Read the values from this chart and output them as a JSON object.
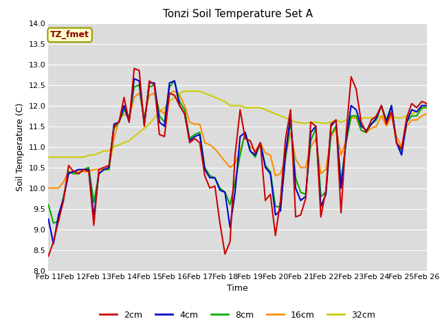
{
  "title": "Tonzi Soil Temperature Set A",
  "xlabel": "Time",
  "ylabel": "Soil Temperature (C)",
  "ylim": [
    8.0,
    14.0
  ],
  "yticks": [
    8.0,
    8.5,
    9.0,
    9.5,
    10.0,
    10.5,
    11.0,
    11.5,
    12.0,
    12.5,
    13.0,
    13.5,
    14.0
  ],
  "xtick_labels": [
    "Feb 11",
    "Feb 12",
    "Feb 13",
    "Feb 14",
    "Feb 15",
    "Feb 16",
    "Feb 17",
    "Feb 18",
    "Feb 19",
    "Feb 20",
    "Feb 21",
    "Feb 22",
    "Feb 23",
    "Feb 24",
    "Feb 25",
    "Feb 26"
  ],
  "annotation_text": "TZ_fmet",
  "annotation_color": "#8B0000",
  "annotation_bg": "#FFFFCC",
  "annotation_border": "#999900",
  "series": {
    "2cm": {
      "color": "#CC0000",
      "lw": 1.5,
      "y": [
        8.35,
        8.7,
        9.2,
        9.7,
        10.55,
        10.4,
        10.35,
        10.45,
        10.4,
        9.1,
        10.45,
        10.5,
        10.55,
        11.5,
        11.6,
        12.2,
        11.6,
        12.9,
        12.85,
        11.5,
        12.6,
        12.5,
        11.3,
        11.25,
        12.3,
        12.25,
        12.0,
        11.8,
        11.1,
        11.2,
        11.1,
        10.3,
        10.0,
        10.05,
        9.15,
        8.4,
        8.7,
        10.8,
        11.9,
        11.2,
        11.15,
        10.85,
        11.1,
        9.7,
        9.85,
        8.85,
        9.7,
        11.2,
        11.9,
        9.3,
        9.35,
        9.75,
        11.6,
        11.5,
        9.3,
        9.95,
        11.55,
        11.65,
        9.4,
        11.3,
        12.7,
        12.4,
        11.6,
        11.35,
        11.65,
        11.75,
        12.0,
        11.55,
        11.85,
        11.1,
        10.95,
        11.7,
        12.05,
        11.95,
        12.1,
        12.05
      ]
    },
    "4cm": {
      "color": "#0000CC",
      "lw": 1.5,
      "y": [
        9.25,
        8.65,
        9.35,
        9.75,
        10.35,
        10.4,
        10.45,
        10.45,
        10.45,
        9.3,
        10.35,
        10.45,
        10.5,
        11.55,
        11.6,
        12.0,
        11.6,
        12.65,
        12.6,
        11.55,
        12.55,
        12.55,
        11.6,
        11.5,
        12.55,
        12.6,
        12.0,
        11.8,
        11.15,
        11.25,
        11.3,
        10.45,
        10.25,
        10.25,
        9.95,
        9.9,
        9.05,
        9.9,
        11.25,
        11.35,
        10.9,
        10.8,
        11.1,
        10.5,
        10.35,
        9.35,
        9.45,
        10.85,
        11.75,
        10.0,
        9.7,
        9.8,
        11.35,
        11.5,
        9.55,
        9.85,
        11.5,
        11.65,
        10.0,
        11.15,
        12.0,
        11.9,
        11.5,
        11.4,
        11.55,
        11.7,
        12.0,
        11.6,
        12.0,
        11.1,
        10.8,
        11.6,
        11.9,
        11.85,
        12.0,
        12.0
      ]
    },
    "8cm": {
      "color": "#00AA00",
      "lw": 1.5,
      "y": [
        9.6,
        9.15,
        9.2,
        9.8,
        10.4,
        10.35,
        10.35,
        10.45,
        10.5,
        9.65,
        10.35,
        10.45,
        10.45,
        11.45,
        11.6,
        11.9,
        11.7,
        12.45,
        12.5,
        11.6,
        12.45,
        12.5,
        11.75,
        11.6,
        12.45,
        12.6,
        12.1,
        11.9,
        11.2,
        11.3,
        11.35,
        10.5,
        10.3,
        10.25,
        10.0,
        9.9,
        9.6,
        10.15,
        10.8,
        11.35,
        10.9,
        10.75,
        11.1,
        10.55,
        10.4,
        9.55,
        9.55,
        10.75,
        11.6,
        10.25,
        9.9,
        9.85,
        11.15,
        11.45,
        9.8,
        9.9,
        11.3,
        11.5,
        10.15,
        11.1,
        11.75,
        11.75,
        11.4,
        11.35,
        11.55,
        11.65,
        12.0,
        11.65,
        12.0,
        11.1,
        10.9,
        11.6,
        11.75,
        11.75,
        11.95,
        11.95
      ]
    },
    "16cm": {
      "color": "#FF8C00",
      "lw": 1.5,
      "y": [
        10.0,
        10.0,
        10.0,
        10.15,
        10.4,
        10.4,
        10.4,
        10.4,
        10.4,
        10.45,
        10.45,
        10.45,
        10.45,
        11.2,
        11.65,
        11.8,
        11.7,
        12.2,
        12.3,
        11.75,
        12.25,
        12.3,
        11.9,
        11.8,
        12.3,
        12.35,
        12.25,
        12.0,
        11.6,
        11.55,
        11.55,
        11.1,
        11.05,
        10.95,
        10.8,
        10.65,
        10.5,
        10.6,
        10.9,
        11.3,
        11.0,
        10.9,
        11.1,
        10.85,
        10.8,
        10.3,
        10.35,
        10.75,
        11.35,
        10.7,
        10.5,
        10.5,
        11.0,
        11.2,
        10.35,
        10.45,
        11.25,
        11.45,
        10.8,
        11.15,
        11.7,
        11.7,
        11.4,
        11.35,
        11.45,
        11.5,
        11.75,
        11.5,
        11.75,
        11.25,
        11.0,
        11.5,
        11.65,
        11.65,
        11.75,
        11.8
      ]
    },
    "32cm": {
      "color": "#CCCC00",
      "lw": 1.5,
      "y": [
        10.75,
        10.75,
        10.75,
        10.75,
        10.75,
        10.75,
        10.75,
        10.75,
        10.8,
        10.8,
        10.85,
        10.9,
        10.9,
        11.0,
        11.05,
        11.1,
        11.15,
        11.25,
        11.35,
        11.45,
        11.55,
        11.7,
        11.85,
        11.95,
        12.1,
        12.2,
        12.3,
        12.35,
        12.35,
        12.35,
        12.35,
        12.3,
        12.25,
        12.2,
        12.15,
        12.1,
        12.0,
        12.0,
        12.0,
        11.95,
        11.95,
        11.95,
        11.95,
        11.9,
        11.85,
        11.8,
        11.75,
        11.7,
        11.65,
        11.6,
        11.58,
        11.57,
        11.6,
        11.6,
        11.58,
        11.57,
        11.6,
        11.65,
        11.6,
        11.65,
        11.7,
        11.75,
        11.7,
        11.7,
        11.7,
        11.7,
        11.75,
        11.7,
        11.75,
        11.7,
        11.7,
        11.75,
        11.8,
        11.85,
        11.9,
        12.05
      ]
    }
  },
  "n_points": 76,
  "x_start": 11.0,
  "x_end": 26.0,
  "xtick_positions": [
    11,
    12,
    13,
    14,
    15,
    16,
    17,
    18,
    19,
    20,
    21,
    22,
    23,
    24,
    25,
    26
  ],
  "fig_bg": "#FFFFFF",
  "plot_bg": "#DCDCDC",
  "grid_color": "#FFFFFF",
  "legend_labels": [
    "2cm",
    "4cm",
    "8cm",
    "16cm",
    "32cm"
  ],
  "legend_colors": [
    "#CC0000",
    "#0000CC",
    "#00AA00",
    "#FF8C00",
    "#CCCC00"
  ],
  "title_fontsize": 11,
  "axis_fontsize": 9,
  "tick_fontsize": 8
}
